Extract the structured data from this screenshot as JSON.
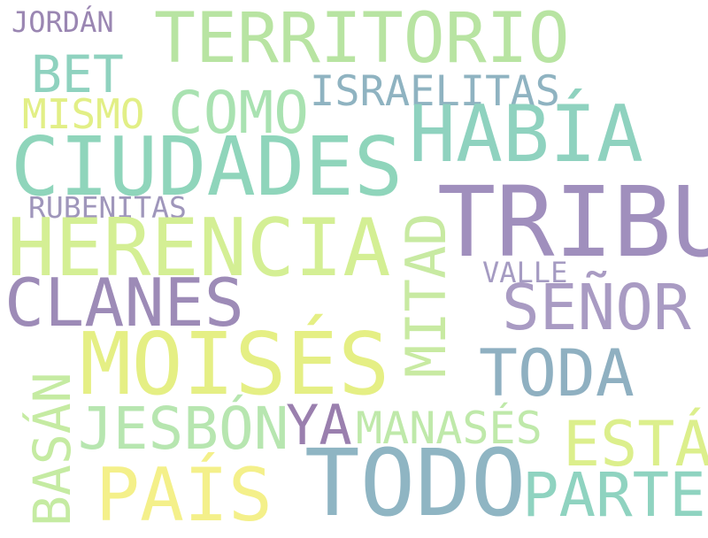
{
  "words": [
    {
      "text": "JORDÁN",
      "color": "#9a86b2"
    },
    {
      "text": "TERRITORIO",
      "color": "#b8e4a2"
    },
    {
      "text": "BET",
      "color": "#8fd2bf"
    },
    {
      "text": "ISRAELITAS",
      "color": "#8fb3c1"
    },
    {
      "text": "MISMO",
      "color": "#e2ef86"
    },
    {
      "text": "COMO",
      "color": "#a9e2b1"
    },
    {
      "text": "HABÍA",
      "color": "#8fd2bf"
    },
    {
      "text": "CIUDADES",
      "color": "#8fd5bb"
    },
    {
      "text": "TRIBU",
      "color": "#a08fbd"
    },
    {
      "text": "RUBENITAS",
      "color": "#9f96bb"
    },
    {
      "text": "MITAD",
      "color": "#c8eaa2"
    },
    {
      "text": "HERENCIA",
      "color": "#d4ef94"
    },
    {
      "text": "VALLE",
      "color": "#a59bc2"
    },
    {
      "text": "CLANES",
      "color": "#9d8bb7"
    },
    {
      "text": "SEÑOR",
      "color": "#a99bc3"
    },
    {
      "text": "MOISÉS",
      "color": "#e5ef84"
    },
    {
      "text": "TODA",
      "color": "#8fb0c1"
    },
    {
      "text": "BASÁN",
      "color": "#c5eba2"
    },
    {
      "text": "JESBÓN",
      "color": "#b7e6b0"
    },
    {
      "text": "YA",
      "color": "#9a7fae"
    },
    {
      "text": "MANASÉS",
      "color": "#bfe9aa"
    },
    {
      "text": "ESTÁ",
      "color": "#dcef8c"
    },
    {
      "text": "TODO",
      "color": "#8fb5c3"
    },
    {
      "text": "PAÍS",
      "color": "#f4f08a"
    },
    {
      "text": "PARTE",
      "color": "#8fd3c0"
    }
  ]
}
